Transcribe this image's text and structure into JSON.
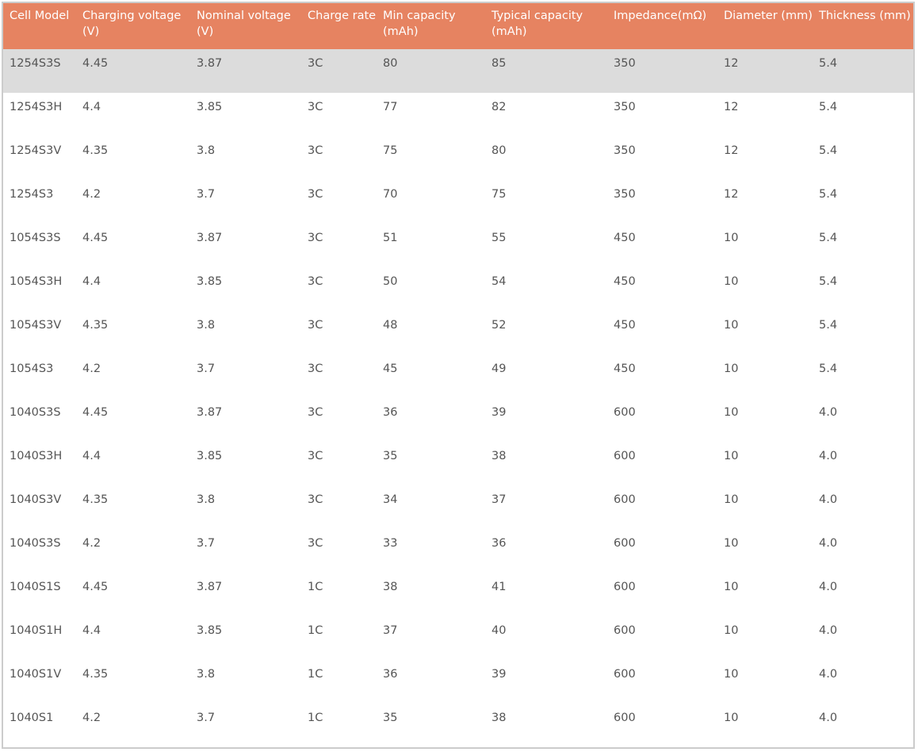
{
  "table": {
    "headers": [
      "Cell Model",
      "Charging voltage (V)",
      "Nominal voltage (V)",
      "Charge rate",
      "Min capacity (mAh)",
      "Typical capacity (mAh)",
      "Impedance(mΩ)",
      "Diameter (mm)",
      "Thickness (mm)"
    ],
    "rows": [
      [
        "1254S3S",
        "4.45",
        "3.87",
        "3C",
        "80",
        "85",
        "350",
        "12",
        "5.4"
      ],
      [
        "1254S3H",
        "4.4",
        "3.85",
        "3C",
        "77",
        "82",
        "350",
        "12",
        "5.4"
      ],
      [
        "1254S3V",
        "4.35",
        "3.8",
        "3C",
        "75",
        "80",
        "350",
        "12",
        "5.4"
      ],
      [
        "1254S3",
        "4.2",
        "3.7",
        "3C",
        "70",
        "75",
        "350",
        "12",
        "5.4"
      ],
      [
        "1054S3S",
        "4.45",
        "3.87",
        "3C",
        "51",
        "55",
        "450",
        "10",
        "5.4"
      ],
      [
        "1054S3H",
        "4.4",
        "3.85",
        "3C",
        "50",
        "54",
        "450",
        "10",
        "5.4"
      ],
      [
        "1054S3V",
        "4.35",
        "3.8",
        "3C",
        "48",
        "52",
        "450",
        "10",
        "5.4"
      ],
      [
        "1054S3",
        "4.2",
        "3.7",
        "3C",
        "45",
        "49",
        "450",
        "10",
        "5.4"
      ],
      [
        "1040S3S",
        "4.45",
        "3.87",
        "3C",
        "36",
        "39",
        "600",
        "10",
        "4.0"
      ],
      [
        "1040S3H",
        "4.4",
        "3.85",
        "3C",
        "35",
        "38",
        "600",
        "10",
        "4.0"
      ],
      [
        "1040S3V",
        "4.35",
        "3.8",
        "3C",
        "34",
        "37",
        "600",
        "10",
        "4.0"
      ],
      [
        "1040S3S",
        "4.2",
        "3.7",
        "3C",
        "33",
        "36",
        "600",
        "10",
        "4.0"
      ],
      [
        "1040S1S",
        "4.45",
        "3.87",
        "1C",
        "38",
        "41",
        "600",
        "10",
        "4.0"
      ],
      [
        "1040S1H",
        "4.4",
        "3.85",
        "1C",
        "37",
        "40",
        "600",
        "10",
        "4.0"
      ],
      [
        "1040S1V",
        "4.35",
        "3.8",
        "1C",
        "36",
        "39",
        "600",
        "10",
        "4.0"
      ],
      [
        "1040S1",
        "4.2",
        "3.7",
        "1C",
        "35",
        "38",
        "600",
        "10",
        "4.0"
      ]
    ]
  },
  "colors": {
    "header_background": "#e68361",
    "header_text": "#ffffff",
    "highlight_row": "#dcdcdc",
    "body_text": "#555555",
    "frame_border": "#cccccc"
  }
}
